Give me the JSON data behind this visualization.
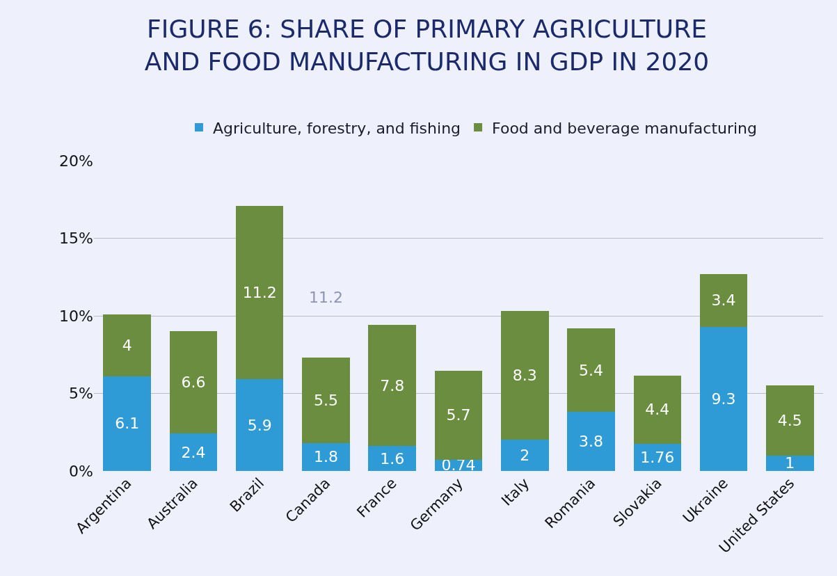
{
  "chart_data": {
    "type": "bar",
    "title": "FIGURE 6: SHARE OF PRIMARY AGRICULTURE\nAND FOOD MANUFACTURING IN GDP IN 2020",
    "categories": [
      "Argentina",
      "Australia",
      "Brazil",
      "Canada",
      "France",
      "Germany",
      "Italy",
      "Romania",
      "Slovakia",
      "Ukraine",
      "United States"
    ],
    "series": [
      {
        "name": "Agriculture, forestry, and fishing",
        "color": "#2e9ad6",
        "values": [
          6.1,
          2.4,
          5.9,
          1.8,
          1.6,
          0.74,
          2,
          3.8,
          1.76,
          9.3,
          1
        ]
      },
      {
        "name": "Food and beverage manufacturing",
        "color": "#6a8d3f",
        "values": [
          4,
          6.6,
          11.2,
          5.5,
          7.8,
          5.7,
          8.3,
          5.4,
          4.4,
          3.4,
          4.5
        ]
      }
    ],
    "stacked": true,
    "data_labels": true,
    "grid": "y",
    "legend": "top",
    "ylim": [
      0,
      20
    ],
    "yticks": [
      {
        "value": 0,
        "label": "0%"
      },
      {
        "value": 5,
        "label": "5%"
      },
      {
        "value": 10,
        "label": "10%"
      },
      {
        "value": 15,
        "label": "15%"
      },
      {
        "value": 20,
        "label": "20%"
      }
    ],
    "annotations": [
      "11.2"
    ]
  }
}
